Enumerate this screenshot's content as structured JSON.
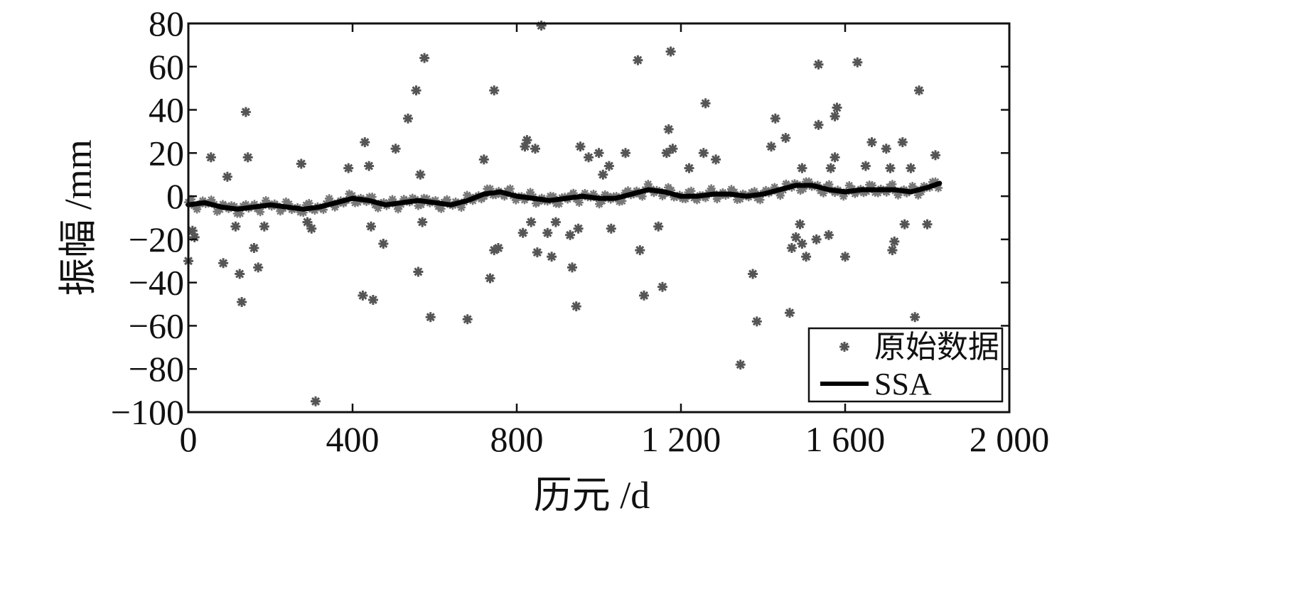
{
  "chart_data": {
    "type": "scatter",
    "xlabel": "历元 /d",
    "ylabel": "振幅 /mm",
    "xlim": [
      0,
      2000
    ],
    "ylim": [
      -100,
      80
    ],
    "xticks": [
      0,
      400,
      800,
      1200,
      1600,
      2000
    ],
    "xtick_labels": [
      "0",
      "400",
      "800",
      "1 200",
      "1 600",
      "2 000"
    ],
    "yticks": [
      -100,
      -80,
      -60,
      -40,
      -20,
      0,
      20,
      40,
      60,
      80
    ],
    "ytick_labels": [
      "−100",
      "−80",
      "−60",
      "−40",
      "−20",
      "0",
      "20",
      "40",
      "60",
      "80"
    ],
    "grid": false,
    "legend": {
      "position": "bottom-right",
      "entries": [
        "原始数据",
        "SSA"
      ]
    },
    "series": [
      {
        "name": "原始数据",
        "kind": "scatter",
        "marker": "asterisk",
        "color": "#555555",
        "outliers": [
          [
            0,
            -30
          ],
          [
            10,
            -16
          ],
          [
            15,
            -19
          ],
          [
            55,
            18
          ],
          [
            85,
            -31
          ],
          [
            95,
            9
          ],
          [
            115,
            -14
          ],
          [
            125,
            -36
          ],
          [
            130,
            -49
          ],
          [
            140,
            39
          ],
          [
            145,
            18
          ],
          [
            160,
            -24
          ],
          [
            170,
            -33
          ],
          [
            185,
            -14
          ],
          [
            275,
            15
          ],
          [
            290,
            -12
          ],
          [
            300,
            -15
          ],
          [
            310,
            -95
          ],
          [
            390,
            13
          ],
          [
            425,
            -46
          ],
          [
            430,
            25
          ],
          [
            440,
            14
          ],
          [
            445,
            -14
          ],
          [
            450,
            -48
          ],
          [
            475,
            -22
          ],
          [
            505,
            22
          ],
          [
            535,
            36
          ],
          [
            555,
            49
          ],
          [
            560,
            -35
          ],
          [
            565,
            10
          ],
          [
            570,
            -12
          ],
          [
            575,
            64
          ],
          [
            590,
            -56
          ],
          [
            680,
            -57
          ],
          [
            720,
            17
          ],
          [
            735,
            -38
          ],
          [
            745,
            49
          ],
          [
            745,
            -25
          ],
          [
            755,
            -24
          ],
          [
            815,
            -17
          ],
          [
            820,
            23
          ],
          [
            825,
            26
          ],
          [
            835,
            -12
          ],
          [
            845,
            22
          ],
          [
            850,
            -26
          ],
          [
            860,
            79
          ],
          [
            875,
            -17
          ],
          [
            885,
            -28
          ],
          [
            895,
            -12
          ],
          [
            930,
            -18
          ],
          [
            935,
            -33
          ],
          [
            945,
            -51
          ],
          [
            950,
            -15
          ],
          [
            955,
            23
          ],
          [
            975,
            18
          ],
          [
            1000,
            20
          ],
          [
            1010,
            10
          ],
          [
            1025,
            14
          ],
          [
            1030,
            -15
          ],
          [
            1065,
            20
          ],
          [
            1095,
            63
          ],
          [
            1100,
            -25
          ],
          [
            1110,
            -46
          ],
          [
            1145,
            -14
          ],
          [
            1155,
            -42
          ],
          [
            1165,
            20
          ],
          [
            1170,
            31
          ],
          [
            1175,
            67
          ],
          [
            1180,
            22
          ],
          [
            1220,
            13
          ],
          [
            1255,
            20
          ],
          [
            1260,
            43
          ],
          [
            1285,
            17
          ],
          [
            1345,
            -78
          ],
          [
            1375,
            -36
          ],
          [
            1385,
            -58
          ],
          [
            1420,
            23
          ],
          [
            1430,
            36
          ],
          [
            1455,
            27
          ],
          [
            1465,
            -54
          ],
          [
            1470,
            -24
          ],
          [
            1480,
            -19
          ],
          [
            1490,
            -13
          ],
          [
            1495,
            -22
          ],
          [
            1495,
            13
          ],
          [
            1505,
            -28
          ],
          [
            1530,
            -20
          ],
          [
            1535,
            33
          ],
          [
            1535,
            61
          ],
          [
            1560,
            -18
          ],
          [
            1565,
            13
          ],
          [
            1575,
            37
          ],
          [
            1575,
            18
          ],
          [
            1580,
            41
          ],
          [
            1600,
            -28
          ],
          [
            1630,
            62
          ],
          [
            1650,
            14
          ],
          [
            1665,
            25
          ],
          [
            1700,
            22
          ],
          [
            1710,
            13
          ],
          [
            1715,
            -25
          ],
          [
            1720,
            -21
          ],
          [
            1740,
            25
          ],
          [
            1745,
            -13
          ],
          [
            1760,
            13
          ],
          [
            1770,
            -56
          ],
          [
            1780,
            49
          ],
          [
            1800,
            -13
          ],
          [
            1820,
            19
          ]
        ],
        "dense_x_range": [
          0,
          1830
        ]
      },
      {
        "name": "SSA",
        "kind": "line",
        "color": "#000000",
        "x": [
          0,
          40,
          80,
          120,
          160,
          200,
          240,
          280,
          320,
          360,
          400,
          440,
          480,
          520,
          560,
          600,
          640,
          680,
          720,
          760,
          800,
          840,
          880,
          920,
          960,
          1000,
          1040,
          1080,
          1120,
          1160,
          1200,
          1240,
          1280,
          1320,
          1360,
          1400,
          1440,
          1480,
          1520,
          1560,
          1600,
          1640,
          1680,
          1720,
          1760,
          1800,
          1830
        ],
        "y": [
          -4,
          -3,
          -5,
          -6,
          -5,
          -4,
          -5,
          -6,
          -5,
          -3,
          -1,
          -2,
          -4,
          -3,
          -2,
          -3,
          -4,
          -2,
          1,
          2,
          0,
          -1,
          -2,
          -1,
          0,
          -1,
          -1,
          1,
          3,
          2,
          0,
          0,
          1,
          1,
          0,
          1,
          3,
          5,
          5,
          3,
          2,
          3,
          3,
          3,
          2,
          4,
          6
        ]
      }
    ]
  }
}
